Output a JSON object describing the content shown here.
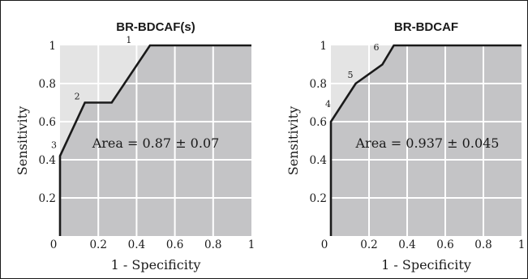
{
  "chart_data": [
    {
      "type": "line",
      "title": "BR-BDCAF(s)",
      "xlabel": "1 - Specificity",
      "ylabel": "Sensitivity",
      "xlim": [
        0,
        1
      ],
      "ylim": [
        0,
        1
      ],
      "xticks": [
        "0",
        "0.2",
        "0.4",
        "0.6",
        "0.8",
        "1"
      ],
      "yticks": [
        "0.2",
        "0.4",
        "0.6",
        "0.8",
        "1"
      ],
      "grid": true,
      "annotation": "Area = 0.87 ± 0.07",
      "series": [
        {
          "x": [
            0.0,
            0.0,
            0.13,
            0.27,
            0.47,
            1.0
          ],
          "y": [
            0.0,
            0.42,
            0.7,
            0.7,
            1.0,
            1.0
          ]
        }
      ],
      "point_labels": [
        {
          "text": "1",
          "x": 0.4,
          "y": 1.0
        },
        {
          "text": "2",
          "x": 0.13,
          "y": 0.7
        },
        {
          "text": "3",
          "x": 0.0,
          "y": 0.42
        }
      ]
    },
    {
      "type": "line",
      "title": "BR-BDCAF",
      "xlabel": "1 - Specificity",
      "ylabel": "Sensitivity",
      "xlim": [
        0,
        1
      ],
      "ylim": [
        0,
        1
      ],
      "xticks": [
        "0",
        "0.2",
        "0.4",
        "0.6",
        "0.8",
        "1"
      ],
      "yticks": [
        "0.2",
        "0.4",
        "0.6",
        "0.8",
        "1"
      ],
      "grid": true,
      "annotation": "Area = 0.937 ± 0.045",
      "series": [
        {
          "x": [
            0.0,
            0.0,
            0.13,
            0.27,
            0.33,
            1.0
          ],
          "y": [
            0.0,
            0.6,
            0.8,
            0.9,
            1.0,
            1.0
          ]
        }
      ],
      "point_labels": [
        {
          "text": "4",
          "x": 0.0,
          "y": 0.6
        },
        {
          "text": "5",
          "x": 0.13,
          "y": 0.8
        },
        {
          "text": "6",
          "x": 0.27,
          "y": 0.97
        }
      ]
    }
  ],
  "colors": {
    "plot_background": "#e4e4e4",
    "area_fill": "#c4c4c6",
    "grid": "#ffffff",
    "curve": "#1a1a1a",
    "text": "#1a1a1a"
  }
}
